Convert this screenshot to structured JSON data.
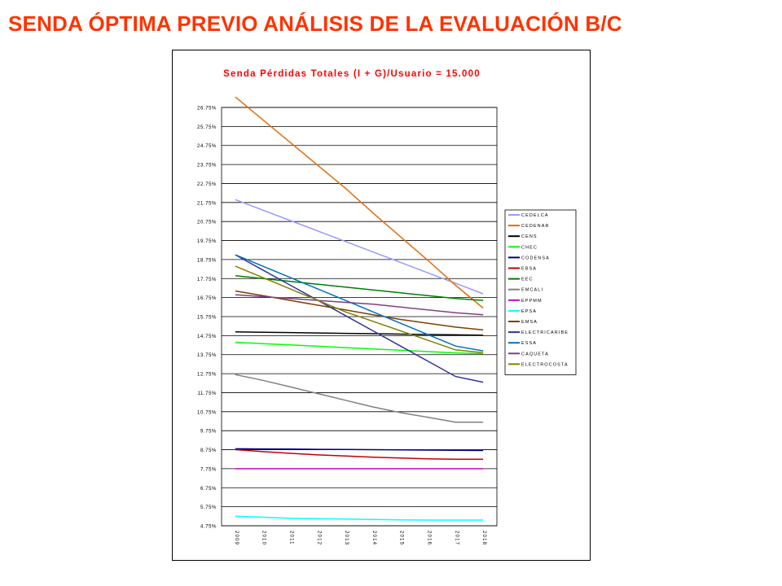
{
  "page": {
    "title": "SENDA ÓPTIMA PREVIO ANÁLISIS DE LA EVALUACIÓN B/C"
  },
  "chart_data": {
    "type": "line",
    "title": "Senda Pérdidas Totales (I + G)/Usuario = 15.000",
    "xlabel": "",
    "ylabel": "",
    "categories": [
      "2009",
      "2010",
      "2011",
      "2012",
      "2013",
      "2014",
      "2015",
      "2016",
      "2017",
      "2018"
    ],
    "y_ticks": [
      "4.75%",
      "5.75%",
      "6.75%",
      "7.75%",
      "8.75%",
      "9.75%",
      "10.75%",
      "11.75%",
      "12.75%",
      "13.75%",
      "14.75%",
      "15.75%",
      "16.75%",
      "17.75%",
      "18.75%",
      "19.75%",
      "20.75%",
      "21.75%",
      "22.75%",
      "23.75%",
      "24.75%",
      "25.75%",
      "26.75%"
    ],
    "ylim": [
      4.75,
      26.75
    ],
    "unit": "%",
    "grid": true,
    "legend_position": "right",
    "series": [
      {
        "name": "CEDELCA",
        "color": "#9999ff",
        "values": [
          21.9,
          21.35,
          20.8,
          20.25,
          19.7,
          19.15,
          18.6,
          18.05,
          17.5,
          16.95
        ]
      },
      {
        "name": "CEDENAR",
        "color": "#e36c09",
        "values": [
          27.3,
          26.1,
          24.9,
          23.7,
          22.5,
          21.2,
          19.95,
          18.7,
          17.4,
          16.2
        ]
      },
      {
        "name": "CENS",
        "color": "#000000",
        "values": [
          14.95,
          14.93,
          14.91,
          14.89,
          14.87,
          14.85,
          14.83,
          14.81,
          14.79,
          14.77
        ]
      },
      {
        "name": "CHEC",
        "color": "#00ff00",
        "values": [
          14.4,
          14.33,
          14.26,
          14.19,
          14.12,
          14.05,
          13.98,
          13.91,
          13.84,
          13.8
        ]
      },
      {
        "name": "CODENSA",
        "color": "#000080",
        "values": [
          8.8,
          8.79,
          8.78,
          8.77,
          8.76,
          8.75,
          8.74,
          8.73,
          8.72,
          8.71
        ]
      },
      {
        "name": "EBSA",
        "color": "#c00000",
        "values": [
          8.75,
          8.65,
          8.56,
          8.48,
          8.42,
          8.36,
          8.31,
          8.27,
          8.25,
          8.25
        ]
      },
      {
        "name": "EEC",
        "color": "#008000",
        "values": [
          17.9,
          17.75,
          17.6,
          17.45,
          17.3,
          17.15,
          17.0,
          16.85,
          16.7,
          16.6
        ]
      },
      {
        "name": "EMCALI",
        "color": "#808080",
        "values": [
          12.7,
          12.4,
          12.05,
          11.7,
          11.35,
          11.0,
          10.7,
          10.45,
          10.2,
          10.2
        ]
      },
      {
        "name": "EPPMM",
        "color": "#cc00cc",
        "values": [
          7.75,
          7.75,
          7.75,
          7.75,
          7.75,
          7.75,
          7.75,
          7.75,
          7.75,
          7.75
        ]
      },
      {
        "name": "EPSA",
        "color": "#00ffff",
        "values": [
          5.25,
          5.2,
          5.15,
          5.12,
          5.1,
          5.08,
          5.06,
          5.05,
          5.05,
          5.05
        ]
      },
      {
        "name": "EMSA",
        "color": "#7f3f00",
        "values": [
          17.1,
          16.85,
          16.6,
          16.35,
          16.1,
          15.85,
          15.6,
          15.4,
          15.2,
          15.05
        ]
      },
      {
        "name": "ELECTRICARIBE",
        "color": "#333399",
        "values": [
          19.0,
          18.2,
          17.4,
          16.6,
          15.8,
          15.0,
          14.2,
          13.4,
          12.6,
          12.3
        ]
      },
      {
        "name": "ESSA",
        "color": "#0070c0",
        "values": [
          19.0,
          18.4,
          17.8,
          17.2,
          16.6,
          16.0,
          15.4,
          14.8,
          14.2,
          13.95
        ]
      },
      {
        "name": "CAQUETA",
        "color": "#7f3f7f",
        "values": [
          16.9,
          16.8,
          16.7,
          16.6,
          16.5,
          16.4,
          16.25,
          16.1,
          15.95,
          15.85
        ]
      },
      {
        "name": "ELECTROCOSTA",
        "color": "#808000",
        "values": [
          18.4,
          17.8,
          17.2,
          16.6,
          16.0,
          15.5,
          15.0,
          14.5,
          14.0,
          13.85
        ]
      }
    ]
  }
}
